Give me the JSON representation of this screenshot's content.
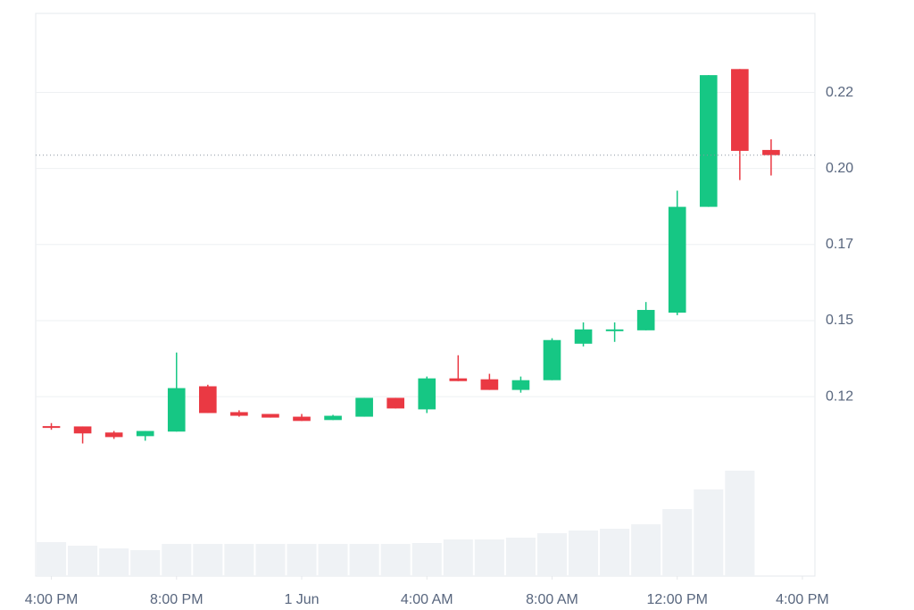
{
  "chart_data": {
    "type": "candlestick",
    "x": [
      0,
      1,
      2,
      3,
      4,
      5,
      6,
      7,
      8,
      9,
      10,
      11,
      12,
      13,
      14,
      15,
      16,
      17,
      18,
      19,
      20,
      21,
      22,
      23
    ],
    "open": [
      0.1153,
      0.1152,
      0.1132,
      0.112,
      0.1135,
      0.1284,
      0.1199,
      0.1193,
      0.1184,
      0.1173,
      0.1184,
      0.1246,
      0.1208,
      0.131,
      0.1307,
      0.1272,
      0.1304,
      0.1424,
      0.1468,
      0.1468,
      0.1526,
      0.1874,
      0.2327,
      0.2061
    ],
    "high": [
      0.1163,
      0.1152,
      0.1137,
      0.1137,
      0.1395,
      0.1289,
      0.1205,
      0.1193,
      0.1193,
      0.119,
      0.1246,
      0.1246,
      0.1316,
      0.1386,
      0.1325,
      0.1316,
      0.1442,
      0.1494,
      0.1494,
      0.1561,
      0.1927,
      0.2307,
      0.2327,
      0.2096
    ],
    "low": [
      0.1141,
      0.1096,
      0.1111,
      0.1105,
      0.1135,
      0.1196,
      0.1184,
      0.1181,
      0.117,
      0.1173,
      0.1184,
      0.1211,
      0.1196,
      0.1301,
      0.1272,
      0.1263,
      0.1304,
      0.1415,
      0.143,
      0.1468,
      0.1518,
      0.1874,
      0.1962,
      0.1977
    ],
    "close": [
      0.115,
      0.1129,
      0.1117,
      0.1137,
      0.1278,
      0.1196,
      0.1187,
      0.1181,
      0.117,
      0.1187,
      0.1246,
      0.1211,
      0.131,
      0.1301,
      0.1272,
      0.1304,
      0.1436,
      0.1471,
      0.1471,
      0.1535,
      0.1874,
      0.2307,
      0.2058,
      0.2044
    ],
    "volume": [
      38,
      34,
      31,
      29,
      36,
      36,
      36,
      36,
      36,
      36,
      36,
      36,
      37,
      41,
      41,
      43,
      48,
      51,
      53,
      58,
      75,
      97,
      118,
      null
    ],
    "up_color": "#16c784",
    "down_color": "#ea3943",
    "volume_color": "#eff2f5",
    "xlim": [
      -0.5,
      24.4
    ],
    "xticks": [
      {
        "value": 0,
        "label": "4:00 PM"
      },
      {
        "value": 4,
        "label": "8:00 PM"
      },
      {
        "value": 8,
        "label": "1 Jun"
      },
      {
        "value": 12,
        "label": "4:00 AM"
      },
      {
        "value": 16,
        "label": "8:00 AM"
      },
      {
        "value": 20,
        "label": "12:00 PM"
      },
      {
        "value": 24,
        "label": "4:00 PM"
      }
    ],
    "ylim": [
      0.066,
      0.251
    ],
    "yticks": [
      {
        "value": 0.125,
        "label": "0.12"
      },
      {
        "value": 0.15,
        "label": "0.15"
      },
      {
        "value": 0.175,
        "label": "0.17"
      },
      {
        "value": 0.2,
        "label": "0.20"
      },
      {
        "value": 0.225,
        "label": "0.22"
      }
    ],
    "grid": true
  }
}
